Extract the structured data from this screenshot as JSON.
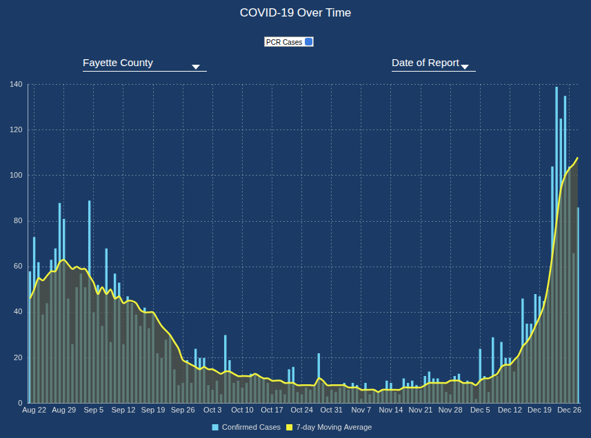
{
  "chart_data": {
    "type": "bar",
    "title": "COVID-19 Over Time",
    "dropdowns": [
      "PCR Cases",
      "Fayette County",
      "Date of Report"
    ],
    "categories": [
      null,
      "Aug 22",
      null,
      null,
      null,
      null,
      null,
      null,
      "Aug 29",
      null,
      null,
      null,
      null,
      null,
      null,
      "Sep 5",
      null,
      null,
      null,
      null,
      null,
      null,
      "Sep 12",
      null,
      null,
      null,
      null,
      null,
      null,
      "Sep 19",
      null,
      null,
      null,
      null,
      null,
      null,
      "Sep 26",
      null,
      null,
      null,
      null,
      null,
      null,
      "Oct 3",
      null,
      null,
      null,
      null,
      null,
      null,
      "Oct 10",
      null,
      null,
      null,
      null,
      null,
      null,
      "Oct 17",
      null,
      null,
      null,
      null,
      null,
      null,
      "Oct 24",
      null,
      null,
      null,
      null,
      null,
      null,
      "Oct 31",
      null,
      null,
      null,
      null,
      null,
      null,
      "Nov 7",
      null,
      null,
      null,
      null,
      null,
      null,
      "Nov 14",
      null,
      null,
      null,
      null,
      null,
      null,
      "Nov 21",
      null,
      null,
      null,
      null,
      null,
      null,
      "Nov 28",
      null,
      null,
      null,
      null,
      null,
      null,
      "Dec 5",
      null,
      null,
      null,
      null,
      null,
      null,
      "Dec 12",
      null,
      null,
      null,
      null,
      null,
      null,
      "Dec 19",
      null,
      null,
      null,
      null,
      null,
      null,
      "Dec 26",
      null,
      null
    ],
    "series": [
      {
        "name": "Confirmed Cases",
        "type": "bar",
        "color": "#6fd3f2",
        "values": [
          58,
          73,
          62,
          39,
          44,
          63,
          68,
          88,
          81,
          46,
          26,
          51,
          57,
          51,
          89,
          40,
          52,
          34,
          68,
          27,
          57,
          53,
          26,
          47,
          44,
          39,
          34,
          42,
          33,
          40,
          22,
          20,
          28,
          30,
          15,
          8,
          9,
          19,
          9,
          24,
          20,
          20,
          8,
          6,
          10,
          4,
          30,
          19,
          9,
          10,
          7,
          9,
          13,
          13,
          12,
          11,
          9,
          4,
          6,
          6,
          4,
          15,
          16,
          5,
          4,
          7,
          6,
          8,
          22,
          9,
          3,
          6,
          5,
          7,
          9,
          6,
          9,
          8,
          2,
          9,
          4,
          6,
          5,
          6,
          10,
          9,
          5,
          4,
          11,
          9,
          10,
          8,
          6,
          12,
          14,
          11,
          11,
          9,
          5,
          4,
          12,
          13,
          9,
          10,
          9,
          2,
          24,
          12,
          5,
          29,
          12,
          27,
          20,
          20,
          14,
          20,
          46,
          35,
          35,
          48,
          47,
          45,
          50,
          104,
          139,
          125,
          135,
          104,
          66,
          86
        ]
      },
      {
        "name": "7-day Moving Average",
        "type": "line",
        "color": "#f2f23c",
        "values": [
          46,
          50,
          55,
          54,
          56,
          58,
          58,
          62,
          63,
          61,
          59,
          60,
          59,
          59,
          56,
          53,
          48,
          51,
          48,
          50,
          46,
          47,
          44,
          45,
          45,
          44,
          41,
          40,
          40,
          40,
          37,
          34,
          32,
          30,
          27,
          24,
          19,
          18,
          17,
          16,
          15,
          16,
          15,
          15,
          14,
          13,
          14,
          14,
          13,
          12,
          12,
          12,
          12,
          13,
          12,
          11,
          11,
          10,
          10,
          10,
          9,
          9,
          9,
          8,
          8,
          8,
          8,
          8,
          11,
          10,
          8,
          8,
          8,
          8,
          8,
          7,
          7,
          7,
          6,
          6,
          6,
          6,
          5,
          6,
          6,
          6,
          6,
          6,
          7,
          7,
          7,
          7,
          7,
          8,
          9,
          9,
          9,
          9,
          9,
          10,
          10,
          10,
          9,
          9,
          9,
          8,
          10,
          11,
          11,
          12,
          13,
          16,
          17,
          17,
          19,
          21,
          25,
          27,
          30,
          34,
          38,
          43,
          52,
          65,
          80,
          94,
          100,
          103,
          105,
          108
        ]
      }
    ],
    "ylim": [
      0,
      140
    ],
    "yticks": [
      0,
      20,
      40,
      60,
      80,
      100,
      120,
      140
    ],
    "grid": true,
    "legend": "bottom"
  }
}
